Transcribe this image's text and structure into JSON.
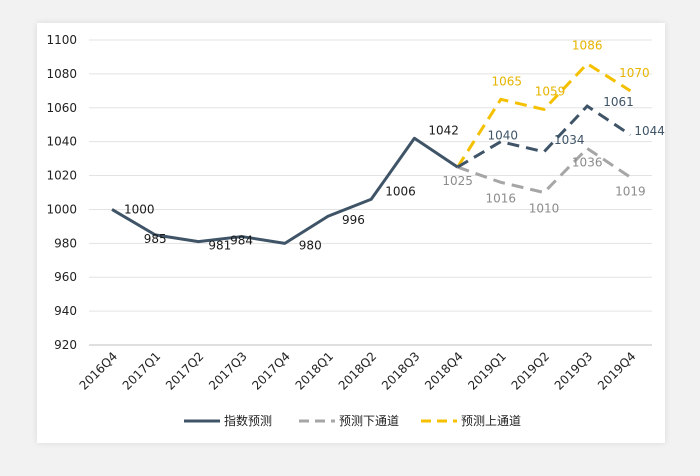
{
  "chart_data": {
    "type": "line",
    "categories": [
      "2016Q4",
      "2017Q1",
      "2017Q2",
      "2017Q3",
      "2017Q4",
      "2018Q1",
      "2018Q2",
      "2018Q3",
      "2018Q4",
      "2019Q1",
      "2019Q2",
      "2019Q3",
      "2019Q4"
    ],
    "ylim": [
      920,
      1100
    ],
    "yticks": [
      920,
      940,
      960,
      980,
      1000,
      1020,
      1040,
      1060,
      1080,
      1100
    ],
    "grid": true,
    "legend_position": "bottom",
    "series": [
      {
        "name": "指数预测",
        "color": "#3f5467",
        "style": "solid",
        "values": [
          1000,
          985,
          981,
          984,
          980,
          996,
          1006,
          1042,
          1025,
          1040,
          1034,
          1061,
          1044
        ],
        "labels": [
          "1000",
          "985",
          "981",
          "984",
          "980",
          "996",
          "1006",
          "1042",
          "",
          "1040",
          "1034",
          "1061",
          "1044"
        ]
      },
      {
        "name": "预测下通道",
        "color": "#a6a6a6",
        "style": "dashed",
        "values": [
          null,
          null,
          null,
          null,
          null,
          null,
          null,
          null,
          1025,
          1016,
          1010,
          1036,
          1019
        ],
        "labels": [
          "",
          "",
          "",
          "",
          "",
          "",
          "",
          "",
          "1025",
          "1016",
          "1010",
          "1036",
          "1019"
        ]
      },
      {
        "name": "预测上通道",
        "color": "#f5c000",
        "style": "dashed",
        "values": [
          null,
          null,
          null,
          null,
          null,
          null,
          null,
          null,
          1025,
          1065,
          1059,
          1086,
          1070
        ],
        "labels": [
          "",
          "",
          "",
          "",
          "",
          "",
          "",
          "",
          "",
          "1065",
          "1059",
          "1086",
          "1070"
        ]
      }
    ]
  }
}
